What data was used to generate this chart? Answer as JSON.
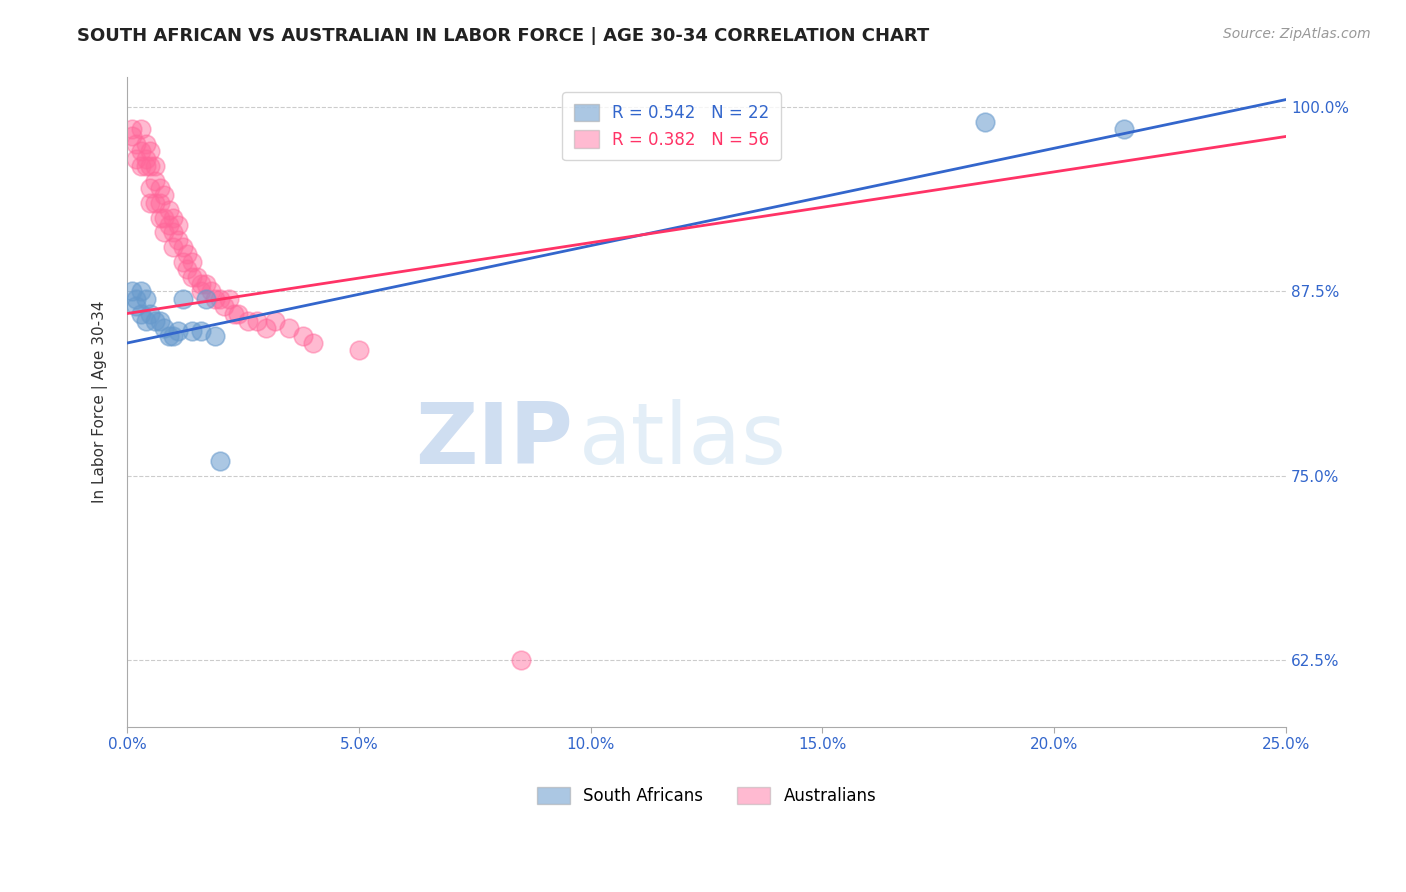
{
  "title": "SOUTH AFRICAN VS AUSTRALIAN IN LABOR FORCE | AGE 30-34 CORRELATION CHART",
  "source": "Source: ZipAtlas.com",
  "ylabel": "In Labor Force | Age 30-34",
  "xlabel": "",
  "xlim": [
    0.0,
    0.25
  ],
  "ylim": [
    0.58,
    1.02
  ],
  "xticks": [
    0.0,
    0.05,
    0.1,
    0.15,
    0.2,
    0.25
  ],
  "yticks": [
    0.625,
    0.75,
    0.875,
    1.0
  ],
  "ytick_labels": [
    "62.5%",
    "75.0%",
    "87.5%",
    "100.0%"
  ],
  "xtick_labels": [
    "0.0%",
    "5.0%",
    "10.0%",
    "15.0%",
    "20.0%",
    "25.0%"
  ],
  "blue_color": "#6699CC",
  "pink_color": "#FF6699",
  "blue_line_color": "#3366CC",
  "pink_line_color": "#FF3366",
  "R_blue": 0.542,
  "N_blue": 22,
  "R_pink": 0.382,
  "N_pink": 56,
  "legend_label_blue": "South Africans",
  "legend_label_pink": "Australians",
  "watermark_zip": "ZIP",
  "watermark_atlas": "atlas",
  "blue_scatter_x": [
    0.001,
    0.002,
    0.002,
    0.003,
    0.003,
    0.004,
    0.004,
    0.005,
    0.006,
    0.007,
    0.008,
    0.009,
    0.01,
    0.011,
    0.012,
    0.014,
    0.016,
    0.017,
    0.019,
    0.02,
    0.185,
    0.215
  ],
  "blue_scatter_y": [
    0.875,
    0.87,
    0.865,
    0.875,
    0.86,
    0.87,
    0.855,
    0.86,
    0.855,
    0.855,
    0.85,
    0.845,
    0.845,
    0.848,
    0.87,
    0.848,
    0.848,
    0.87,
    0.845,
    0.76,
    0.99,
    0.985
  ],
  "pink_scatter_x": [
    0.001,
    0.001,
    0.002,
    0.002,
    0.003,
    0.003,
    0.003,
    0.004,
    0.004,
    0.004,
    0.005,
    0.005,
    0.005,
    0.005,
    0.006,
    0.006,
    0.006,
    0.007,
    0.007,
    0.007,
    0.008,
    0.008,
    0.008,
    0.009,
    0.009,
    0.01,
    0.01,
    0.01,
    0.011,
    0.011,
    0.012,
    0.012,
    0.013,
    0.013,
    0.014,
    0.014,
    0.015,
    0.016,
    0.016,
    0.017,
    0.018,
    0.019,
    0.02,
    0.021,
    0.022,
    0.023,
    0.024,
    0.026,
    0.028,
    0.03,
    0.032,
    0.035,
    0.038,
    0.04,
    0.05,
    0.085
  ],
  "pink_scatter_y": [
    0.985,
    0.98,
    0.975,
    0.965,
    0.985,
    0.97,
    0.96,
    0.975,
    0.965,
    0.96,
    0.97,
    0.96,
    0.945,
    0.935,
    0.96,
    0.95,
    0.935,
    0.945,
    0.935,
    0.925,
    0.94,
    0.925,
    0.915,
    0.93,
    0.92,
    0.925,
    0.915,
    0.905,
    0.92,
    0.91,
    0.905,
    0.895,
    0.9,
    0.89,
    0.895,
    0.885,
    0.885,
    0.88,
    0.875,
    0.88,
    0.875,
    0.87,
    0.87,
    0.865,
    0.87,
    0.86,
    0.86,
    0.855,
    0.855,
    0.85,
    0.855,
    0.85,
    0.845,
    0.84,
    0.835,
    0.625
  ],
  "blue_line_x0": 0.0,
  "blue_line_y0": 0.84,
  "blue_line_x1": 0.25,
  "blue_line_y1": 1.005,
  "pink_line_x0": 0.0,
  "pink_line_y0": 0.86,
  "pink_line_x1": 0.25,
  "pink_line_y1": 0.98
}
